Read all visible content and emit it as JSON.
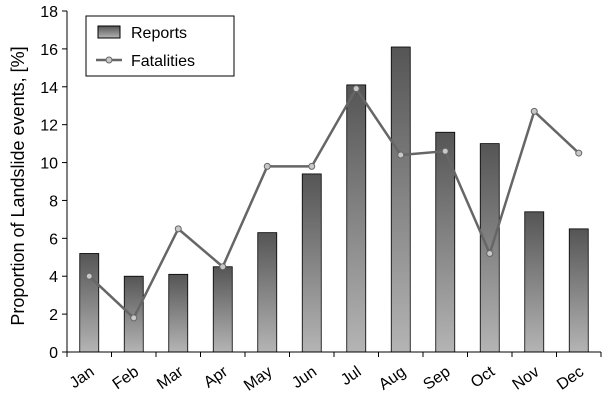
{
  "chart_data": {
    "type": "bar",
    "categories": [
      "Jan",
      "Feb",
      "Mar",
      "Apr",
      "May",
      "Jun",
      "Jul",
      "Aug",
      "Sep",
      "Oct",
      "Nov",
      "Dec"
    ],
    "series": [
      {
        "name": "Reports",
        "type": "bar",
        "values": [
          5.2,
          4.0,
          4.1,
          4.5,
          6.3,
          9.4,
          14.1,
          16.1,
          11.6,
          11.0,
          7.4,
          6.5
        ]
      },
      {
        "name": "Fatalities",
        "type": "line",
        "values": [
          4.0,
          1.8,
          6.5,
          4.5,
          9.8,
          9.8,
          13.9,
          10.4,
          10.6,
          5.2,
          12.7,
          10.5
        ]
      }
    ],
    "title": "",
    "xlabel": "",
    "ylabel": "Proportion of Landslide events, [%]",
    "ylim": [
      0,
      18
    ],
    "yticks": [
      0,
      2,
      4,
      6,
      8,
      10,
      12,
      14,
      16,
      18
    ],
    "grid": false,
    "legend_position": "top-left",
    "colors": {
      "bar_top": "#555555",
      "bar_bottom": "#b4b4b4",
      "line": "#666666",
      "marker_fill": "#c8c8c8",
      "axis": "#000000"
    }
  }
}
